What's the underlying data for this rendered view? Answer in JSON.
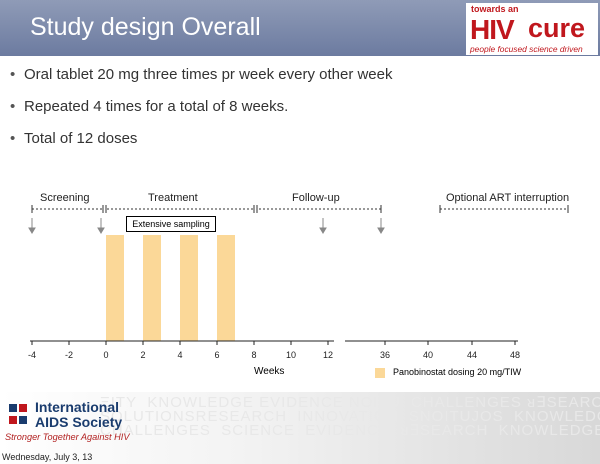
{
  "header": {
    "title": "Study design Overall"
  },
  "logo": {
    "line1": "towards an",
    "hiv": "HIV",
    "cure": "cure",
    "tagline": "people focused science driven"
  },
  "bullets": [
    "Oral tablet 20 mg three times pr week every other week",
    "Repeated 4 times for a total of 8 weeks.",
    "Total of 12 doses"
  ],
  "timeline": {
    "phases": {
      "screening": "Screening",
      "treatment": "Treatment",
      "followup": "Follow-up",
      "optional": "Optional ART interruption"
    },
    "sampling_label": "Extensive sampling",
    "ticks_left": [
      "-4",
      "-2",
      "0",
      "2",
      "4",
      "6",
      "8",
      "10",
      "12"
    ],
    "ticks_right": [
      "36",
      "40",
      "44",
      "48"
    ],
    "weeks_label": "Weeks",
    "legend_label": "Panobinostat dosing 20 mg/TIW",
    "colors": {
      "dosing": "#fbd898"
    }
  },
  "footer": {
    "org_line1": "International",
    "org_line2": "AIDS Society",
    "slogan": "Stronger Together Against HIV",
    "date": "Wednesday, July 3, 13"
  }
}
